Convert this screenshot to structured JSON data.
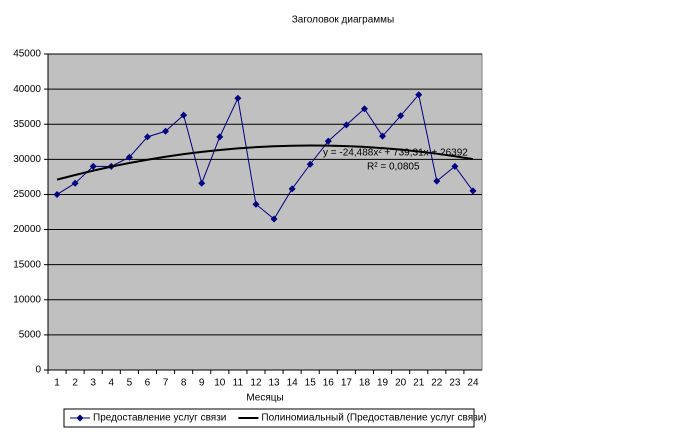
{
  "chart_data": {
    "type": "line",
    "title": "Заголовок диаграммы",
    "x_label": "Месяцы",
    "categories": [
      "1",
      "2",
      "3",
      "4",
      "5",
      "6",
      "7",
      "8",
      "9",
      "10",
      "11",
      "12",
      "13",
      "14",
      "15",
      "16",
      "17",
      "18",
      "19",
      "20",
      "21",
      "22",
      "23",
      "24"
    ],
    "series": [
      {
        "name": "Предоставление услуг связи",
        "color": "#000080",
        "marker": "diamond",
        "values": [
          25000,
          26600,
          29000,
          29000,
          30300,
          33200,
          34000,
          36300,
          26600,
          33200,
          38700,
          23600,
          21500,
          25800,
          29300,
          32600,
          34900,
          37200,
          33300,
          36200,
          39200,
          26900,
          29000,
          25500
        ]
      },
      {
        "name": "Полиномиальный (Предоставление услуг связи)",
        "color": "#000000",
        "marker": "none",
        "values": [
          27107,
          27773,
          28390,
          28957,
          29476,
          29946,
          30367,
          30739,
          31062,
          31336,
          31561,
          31737,
          31865,
          31943,
          31972,
          31952,
          31883,
          31766,
          31599,
          31383,
          31118,
          30805,
          30442,
          30030
        ]
      }
    ],
    "annotations": [
      "y = -24,488x² + 739,31x + 26392",
      "R² = 0,0805"
    ],
    "ylim": [
      0,
      45000
    ],
    "yticks": [
      0,
      5000,
      10000,
      15000,
      20000,
      25000,
      30000,
      35000,
      40000,
      45000
    ],
    "grid": true,
    "plot_background": "#c0c0c0",
    "legend": "bottom"
  }
}
